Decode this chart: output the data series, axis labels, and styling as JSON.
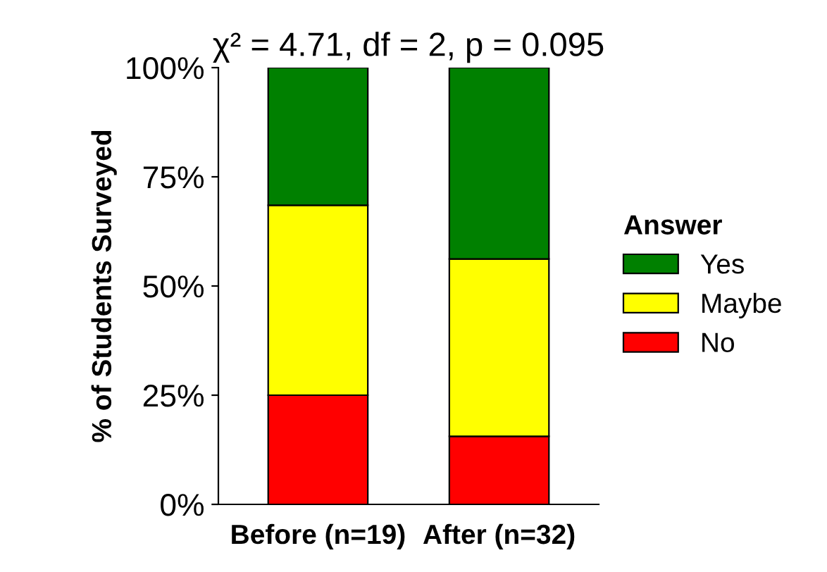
{
  "chart_data": {
    "type": "bar",
    "stacked": true,
    "title": "χ² = 4.71, df = 2, p = 0.095",
    "ylabel": "% of Students Surveyed",
    "legend_title": "Answer",
    "categories": [
      "Before (n=19)",
      "After (n=32)"
    ],
    "series": [
      {
        "name": "No",
        "color": "#ff0000",
        "values": [
          25,
          15.6
        ]
      },
      {
        "name": "Maybe",
        "color": "#ffff00",
        "values": [
          43.5,
          40.6
        ]
      },
      {
        "name": "Yes",
        "color": "#008000",
        "values": [
          31.5,
          43.8
        ]
      }
    ],
    "ylim": [
      0,
      100
    ],
    "yticks": [
      {
        "value": 0,
        "label": "0%"
      },
      {
        "value": 25,
        "label": "25%"
      },
      {
        "value": 50,
        "label": "50%"
      },
      {
        "value": 75,
        "label": "75%"
      },
      {
        "value": 100,
        "label": "100%"
      }
    ],
    "grid": false,
    "legend": "right"
  }
}
